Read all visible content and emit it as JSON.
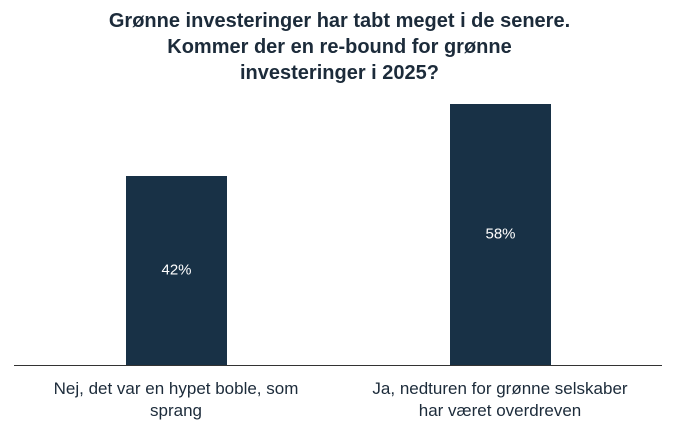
{
  "chart_data": {
    "type": "bar",
    "title_lines": [
      "Grønne investeringer har tabt meget i de senere.",
      "Kommer der en re-bound for grønne",
      "investeringer i 2025?"
    ],
    "categories": [
      "Nej, det var en hypet boble, som sprang",
      "Ja, nedturen for grønne selskaber har været overdreven"
    ],
    "category_lines": [
      [
        "Nej, det var en hypet boble, som",
        "sprang"
      ],
      [
        "Ja, nedturen for grønne selskaber",
        "har været overdreven"
      ]
    ],
    "values": [
      42,
      58
    ],
    "data_labels": [
      "42%",
      "58%"
    ],
    "unit": "%",
    "ylim": [
      0,
      60
    ],
    "grid": false,
    "legend": "none",
    "colors": {
      "bar": "#183146",
      "title": "#1c2b3a",
      "baseline": "#333333",
      "label_text": "#ffffff"
    }
  }
}
